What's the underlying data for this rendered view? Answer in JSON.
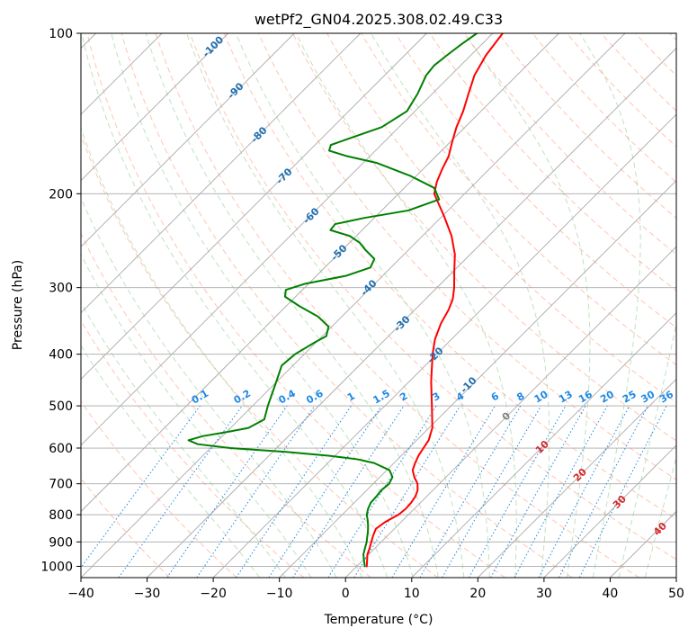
{
  "chart_data": {
    "type": "line",
    "title": "wetPf2_GN04.2025.308.02.49.C33",
    "xlabel": "Temperature (°C)",
    "ylabel": "Pressure (hPa)",
    "xlim": [
      -40,
      50
    ],
    "ylim": [
      1050,
      100
    ],
    "y_scale": "log",
    "skew": true,
    "x_ticks": [
      -40,
      -30,
      -20,
      -10,
      0,
      10,
      20,
      30,
      40,
      50
    ],
    "x_tick_labels": [
      "−40",
      "−30",
      "−20",
      "−10",
      "0",
      "10",
      "20",
      "30",
      "40",
      "50"
    ],
    "y_ticks": [
      1000,
      900,
      800,
      700,
      600,
      500,
      400,
      300,
      200,
      100
    ],
    "y_tick_labels": [
      "1000",
      "900",
      "800",
      "700",
      "600",
      "500",
      "400",
      "300",
      "200",
      "100"
    ],
    "grid": true,
    "series": [
      {
        "color": "#ff0000",
        "points": [
          [
            1000,
            1.5
          ],
          [
            985,
            1.0
          ],
          [
            970,
            0.5
          ],
          [
            950,
            -0.2
          ],
          [
            925,
            -0.8
          ],
          [
            900,
            -1.5
          ],
          [
            875,
            -2.2
          ],
          [
            850,
            -2.8
          ],
          [
            825,
            -2.4
          ],
          [
            800,
            -1.5
          ],
          [
            780,
            -1.3
          ],
          [
            760,
            -1.4
          ],
          [
            740,
            -1.7
          ],
          [
            720,
            -2.3
          ],
          [
            700,
            -3.3
          ],
          [
            680,
            -4.8
          ],
          [
            660,
            -6.1
          ],
          [
            640,
            -6.8
          ],
          [
            620,
            -7.4
          ],
          [
            600,
            -7.8
          ],
          [
            580,
            -8.2
          ],
          [
            550,
            -9.5
          ],
          [
            500,
            -12.9
          ],
          [
            450,
            -16.7
          ],
          [
            400,
            -20.6
          ],
          [
            375,
            -22.5
          ],
          [
            350,
            -24.0
          ],
          [
            330,
            -24.9
          ],
          [
            315,
            -25.9
          ],
          [
            300,
            -27.4
          ],
          [
            280,
            -29.8
          ],
          [
            260,
            -32.3
          ],
          [
            240,
            -35.6
          ],
          [
            220,
            -39.8
          ],
          [
            200,
            -44.6
          ],
          [
            190,
            -46.0
          ],
          [
            180,
            -47.1
          ],
          [
            170,
            -48.1
          ],
          [
            160,
            -49.7
          ],
          [
            150,
            -51.3
          ],
          [
            140,
            -52.7
          ],
          [
            130,
            -54.5
          ],
          [
            120,
            -56.4
          ],
          [
            110,
            -57.7
          ],
          [
            100,
            -58.5
          ]
        ]
      },
      {
        "color": "#008000",
        "points": [
          [
            1000,
            1.2
          ],
          [
            985,
            0.6
          ],
          [
            970,
            0.0
          ],
          [
            950,
            -0.8
          ],
          [
            925,
            -1.5
          ],
          [
            900,
            -2.2
          ],
          [
            880,
            -2.9
          ],
          [
            860,
            -3.6
          ],
          [
            840,
            -4.4
          ],
          [
            820,
            -5.3
          ],
          [
            800,
            -6.3
          ],
          [
            780,
            -7.0
          ],
          [
            760,
            -7.5
          ],
          [
            740,
            -7.6
          ],
          [
            720,
            -7.8
          ],
          [
            700,
            -7.6
          ],
          [
            680,
            -8.1
          ],
          [
            660,
            -9.6
          ],
          [
            640,
            -13.0
          ],
          [
            630,
            -16.0
          ],
          [
            620,
            -21.0
          ],
          [
            610,
            -28.0
          ],
          [
            600,
            -37.0
          ],
          [
            590,
            -42.5
          ],
          [
            580,
            -44.5
          ],
          [
            570,
            -43.0
          ],
          [
            560,
            -40.0
          ],
          [
            550,
            -37.3
          ],
          [
            530,
            -36.2
          ],
          [
            500,
            -37.7
          ],
          [
            450,
            -40.1
          ],
          [
            420,
            -41.7
          ],
          [
            400,
            -41.4
          ],
          [
            380,
            -40.2
          ],
          [
            370,
            -39.4
          ],
          [
            355,
            -40.5
          ],
          [
            340,
            -43.6
          ],
          [
            325,
            -48.0
          ],
          [
            312,
            -51.6
          ],
          [
            303,
            -52.5
          ],
          [
            295,
            -50.5
          ],
          [
            285,
            -45.5
          ],
          [
            275,
            -43.1
          ],
          [
            265,
            -43.8
          ],
          [
            255,
            -46.5
          ],
          [
            247,
            -48.5
          ],
          [
            240,
            -51.0
          ],
          [
            234,
            -54.8
          ],
          [
            228,
            -55.0
          ],
          [
            222,
            -51.5
          ],
          [
            215,
            -46.0
          ],
          [
            205,
            -43.0
          ],
          [
            195,
            -45.5
          ],
          [
            185,
            -51.0
          ],
          [
            175,
            -58.0
          ],
          [
            170,
            -63.5
          ],
          [
            166,
            -67.0
          ],
          [
            162,
            -67.6
          ],
          [
            158,
            -66.0
          ],
          [
            150,
            -62.6
          ],
          [
            140,
            -61.2
          ],
          [
            130,
            -62.2
          ],
          [
            120,
            -63.7
          ],
          [
            115,
            -64.0
          ],
          [
            110,
            -63.6
          ],
          [
            105,
            -63.1
          ],
          [
            100,
            -62.4
          ]
        ]
      }
    ],
    "isotherm_labels": [
      "-100",
      "-90",
      "-80",
      "-70",
      "-60",
      "-50",
      "-40",
      "-30",
      "-20",
      "-10"
    ],
    "mixing_ratio_labels": [
      "0.1",
      "0.2",
      "0.4",
      "0.6",
      "1",
      "1.5",
      "2",
      "3",
      "4",
      "6",
      "8",
      "10",
      "13",
      "16",
      "20",
      "25",
      "30",
      "36"
    ],
    "moist_adiabat_labels": [
      "0",
      "10",
      "20",
      "30",
      "40"
    ]
  },
  "colors": {
    "isotherm_label": "#1f6fb0",
    "mixing_ratio": "#1e88e5",
    "moist_adiabat_label": "#d62728",
    "dry_adiabat": "#ff7f50",
    "moist_adiabat": "#2ca02c",
    "grid": "#aaaaaa"
  }
}
